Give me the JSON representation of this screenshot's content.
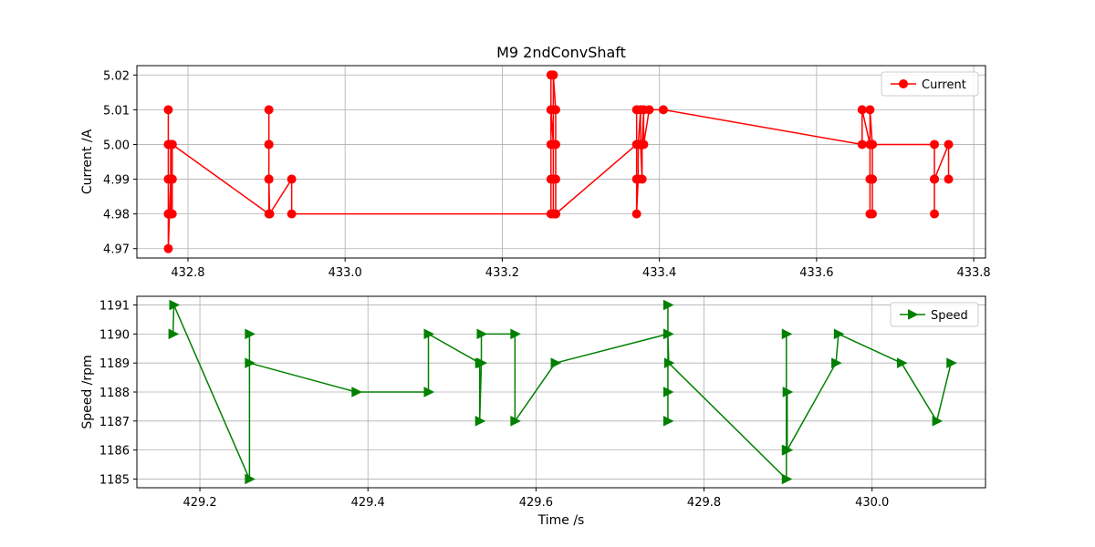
{
  "title": "M9 2ndConvShaft",
  "chart_data": [
    {
      "type": "line",
      "title": "M9 2ndConvShaft",
      "xlabel": "",
      "ylabel": "Current /A",
      "xlim": [
        432.735,
        433.815
      ],
      "ylim": [
        4.9673,
        5.0227
      ],
      "x_ticks": [
        "432.8",
        "433.0",
        "433.2",
        "433.4",
        "433.6",
        "433.8"
      ],
      "x_tick_values": [
        432.8,
        433.0,
        433.2,
        433.4,
        433.6,
        433.8
      ],
      "y_ticks": [
        "4.97",
        "4.98",
        "4.99",
        "5.00",
        "5.01",
        "5.02"
      ],
      "y_tick_values": [
        4.97,
        4.98,
        4.99,
        5.0,
        5.01,
        5.02
      ],
      "grid": true,
      "legend_position": "top-right",
      "series": [
        {
          "name": "Current",
          "color": "#ff0000",
          "marker": "circle",
          "x": [
            432.775,
            432.775,
            432.775,
            432.775,
            432.775,
            432.775,
            432.778,
            432.778,
            432.778,
            432.78,
            432.78,
            432.78,
            432.78,
            432.78,
            432.903,
            432.903,
            432.903,
            432.903,
            432.903,
            432.903,
            432.904,
            432.904,
            432.932,
            432.932,
            433.262,
            433.262,
            433.262,
            433.262,
            433.262,
            433.262,
            433.265,
            433.265,
            433.265,
            433.265,
            433.265,
            433.268,
            433.268,
            433.268,
            433.268,
            433.268,
            433.371,
            433.371,
            433.371,
            433.371,
            433.373,
            433.373,
            433.376,
            433.376,
            433.378,
            433.378,
            433.38,
            433.38,
            433.387,
            433.405,
            433.658,
            433.658,
            433.668,
            433.668,
            433.668,
            433.668,
            433.671,
            433.671,
            433.671,
            433.671,
            433.671,
            433.75,
            433.75,
            433.75,
            433.75,
            433.768,
            433.768
          ],
          "y": [
            4.98,
            4.99,
            5.0,
            5.01,
            4.98,
            4.97,
            4.99,
            5.0,
            4.98,
            5.0,
            4.99,
            4.98,
            4.99,
            5.0,
            4.98,
            4.99,
            5.0,
            5.01,
            5.0,
            4.99,
            4.98,
            4.98,
            4.99,
            4.98,
            4.98,
            4.99,
            5.0,
            5.01,
            5.02,
            5.01,
            5.0,
            4.99,
            4.98,
            4.99,
            5.02,
            5.01,
            5.0,
            4.99,
            4.98,
            4.98,
            5.0,
            5.01,
            4.99,
            4.98,
            4.99,
            5.0,
            5.01,
            5.0,
            4.99,
            5.0,
            5.01,
            5.0,
            5.01,
            5.01,
            5.0,
            5.01,
            5.0,
            4.99,
            4.98,
            5.01,
            5.0,
            4.99,
            4.98,
            4.99,
            5.0,
            5.0,
            4.99,
            4.98,
            4.99,
            5.0,
            4.99
          ]
        }
      ]
    },
    {
      "type": "line",
      "title": "",
      "xlabel": "Time /s",
      "ylabel": "Speed /rpm",
      "xlim": [
        429.125,
        430.135
      ],
      "ylim": [
        1184.7,
        1191.3
      ],
      "x_ticks": [
        "429.2",
        "429.4",
        "429.6",
        "429.8",
        "430.0"
      ],
      "x_tick_values": [
        429.2,
        429.4,
        429.6,
        429.8,
        430.0
      ],
      "y_ticks": [
        "1185",
        "1186",
        "1187",
        "1188",
        "1189",
        "1190",
        "1191"
      ],
      "y_tick_values": [
        1185,
        1186,
        1187,
        1188,
        1189,
        1190,
        1191
      ],
      "grid": true,
      "legend_position": "top-right",
      "series": [
        {
          "name": "Speed",
          "color": "#008000",
          "marker": "triangle-right",
          "x": [
            429.168,
            429.169,
            429.259,
            429.259,
            429.259,
            429.386,
            429.472,
            429.472,
            429.533,
            429.533,
            429.535,
            429.535,
            429.575,
            429.575,
            429.623,
            429.757,
            429.757,
            429.757,
            429.757,
            429.757,
            429.758,
            429.898,
            429.898,
            429.898,
            429.899,
            429.899,
            429.957,
            429.96,
            430.035,
            430.077,
            430.094
          ],
          "y": [
            1190,
            1191,
            1185,
            1190,
            1189,
            1188,
            1188,
            1190,
            1189,
            1187,
            1189,
            1190,
            1190,
            1187,
            1189,
            1190,
            1191,
            1187,
            1188,
            1190,
            1189,
            1185,
            1190,
            1186,
            1188,
            1186,
            1189,
            1190,
            1189,
            1187,
            1189
          ]
        }
      ]
    }
  ]
}
